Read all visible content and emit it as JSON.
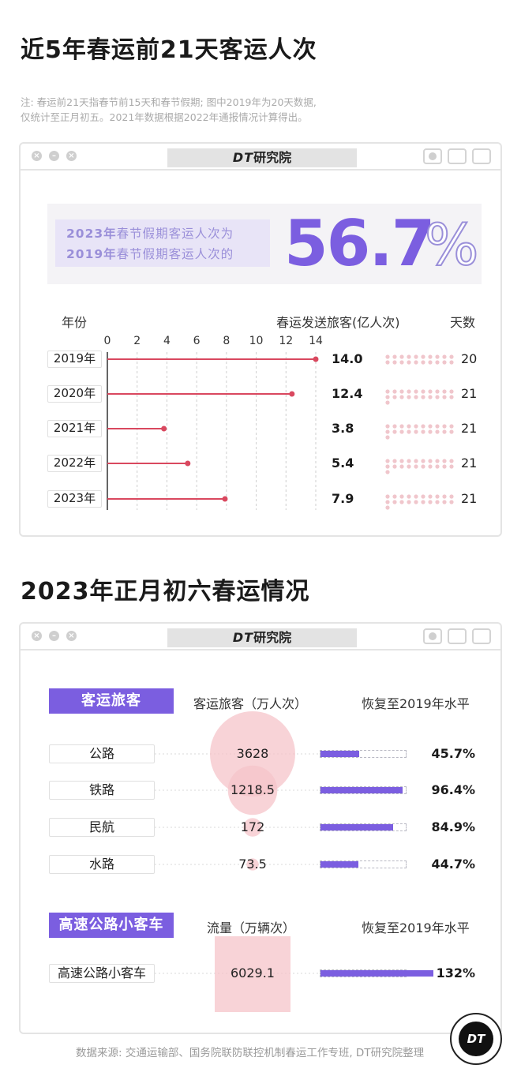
{
  "page": {
    "title1": "近5年春运前21天客运人次",
    "note_line1": "注: 春运前21天指春节前15天和春节假期; 图中2019年为20天数据,",
    "note_line2": "仅统计至正月初五。2021年数据根据2022年通报情况计算得出。",
    "title2": "2023年正月初六春运情况",
    "source": "数据来源: 交通运输部、国务院联防联控机制春运工作专班, DT研究院整理",
    "badge": "DT"
  },
  "window": {
    "brand_italic": "DT",
    "brand_text": "研究院"
  },
  "banner": {
    "line1_year": "2023年",
    "line1_text": "春节假期客运人次为",
    "line2_year": "2019年",
    "line2_text": "春节假期客运人次的",
    "number": "56.7",
    "percent": "%"
  },
  "colors": {
    "accent": "#7b5ee0",
    "line": "#d9485f",
    "bubble": "#f6c4c9"
  },
  "chart_data": [
    {
      "type": "bar",
      "orientation": "horizontal",
      "header_category": "年份",
      "xlabel": "春运发送旅客(亿人次)",
      "header_days": "天数",
      "categories": [
        "2019年",
        "2020年",
        "2021年",
        "2022年",
        "2023年"
      ],
      "values": [
        14.0,
        12.4,
        3.8,
        5.4,
        7.9
      ],
      "value_labels": [
        "14.0",
        "12.4",
        "3.8",
        "5.4",
        "7.9"
      ],
      "days": [
        20,
        21,
        21,
        21,
        21
      ],
      "xlim": [
        0,
        14
      ],
      "ticks": [
        "0",
        "2",
        "4",
        "6",
        "8",
        "10",
        "12",
        "14"
      ],
      "grid": true
    },
    {
      "type": "bubble",
      "tag": "客运旅客",
      "value_header": "客运旅客（万人次）",
      "recovery_header": "恢复至2019年水平",
      "categories": [
        "公路",
        "铁路",
        "民航",
        "水路"
      ],
      "values": [
        3628,
        1218.5,
        172,
        73.5
      ],
      "value_labels": [
        "3628",
        "1218.5",
        "172",
        "73.5"
      ],
      "recovery": [
        45.7,
        96.4,
        84.9,
        44.7
      ],
      "recovery_labels": [
        "45.7%",
        "96.4%",
        "84.9%",
        "44.7%"
      ]
    },
    {
      "type": "bar",
      "tag": "高速公路小客车",
      "value_header": "流量（万辆次）",
      "recovery_header": "恢复至2019年水平",
      "categories": [
        "高速公路小客车"
      ],
      "values": [
        6029.1
      ],
      "value_labels": [
        "6029.1"
      ],
      "recovery": [
        132
      ],
      "recovery_labels": [
        "132%"
      ]
    }
  ]
}
